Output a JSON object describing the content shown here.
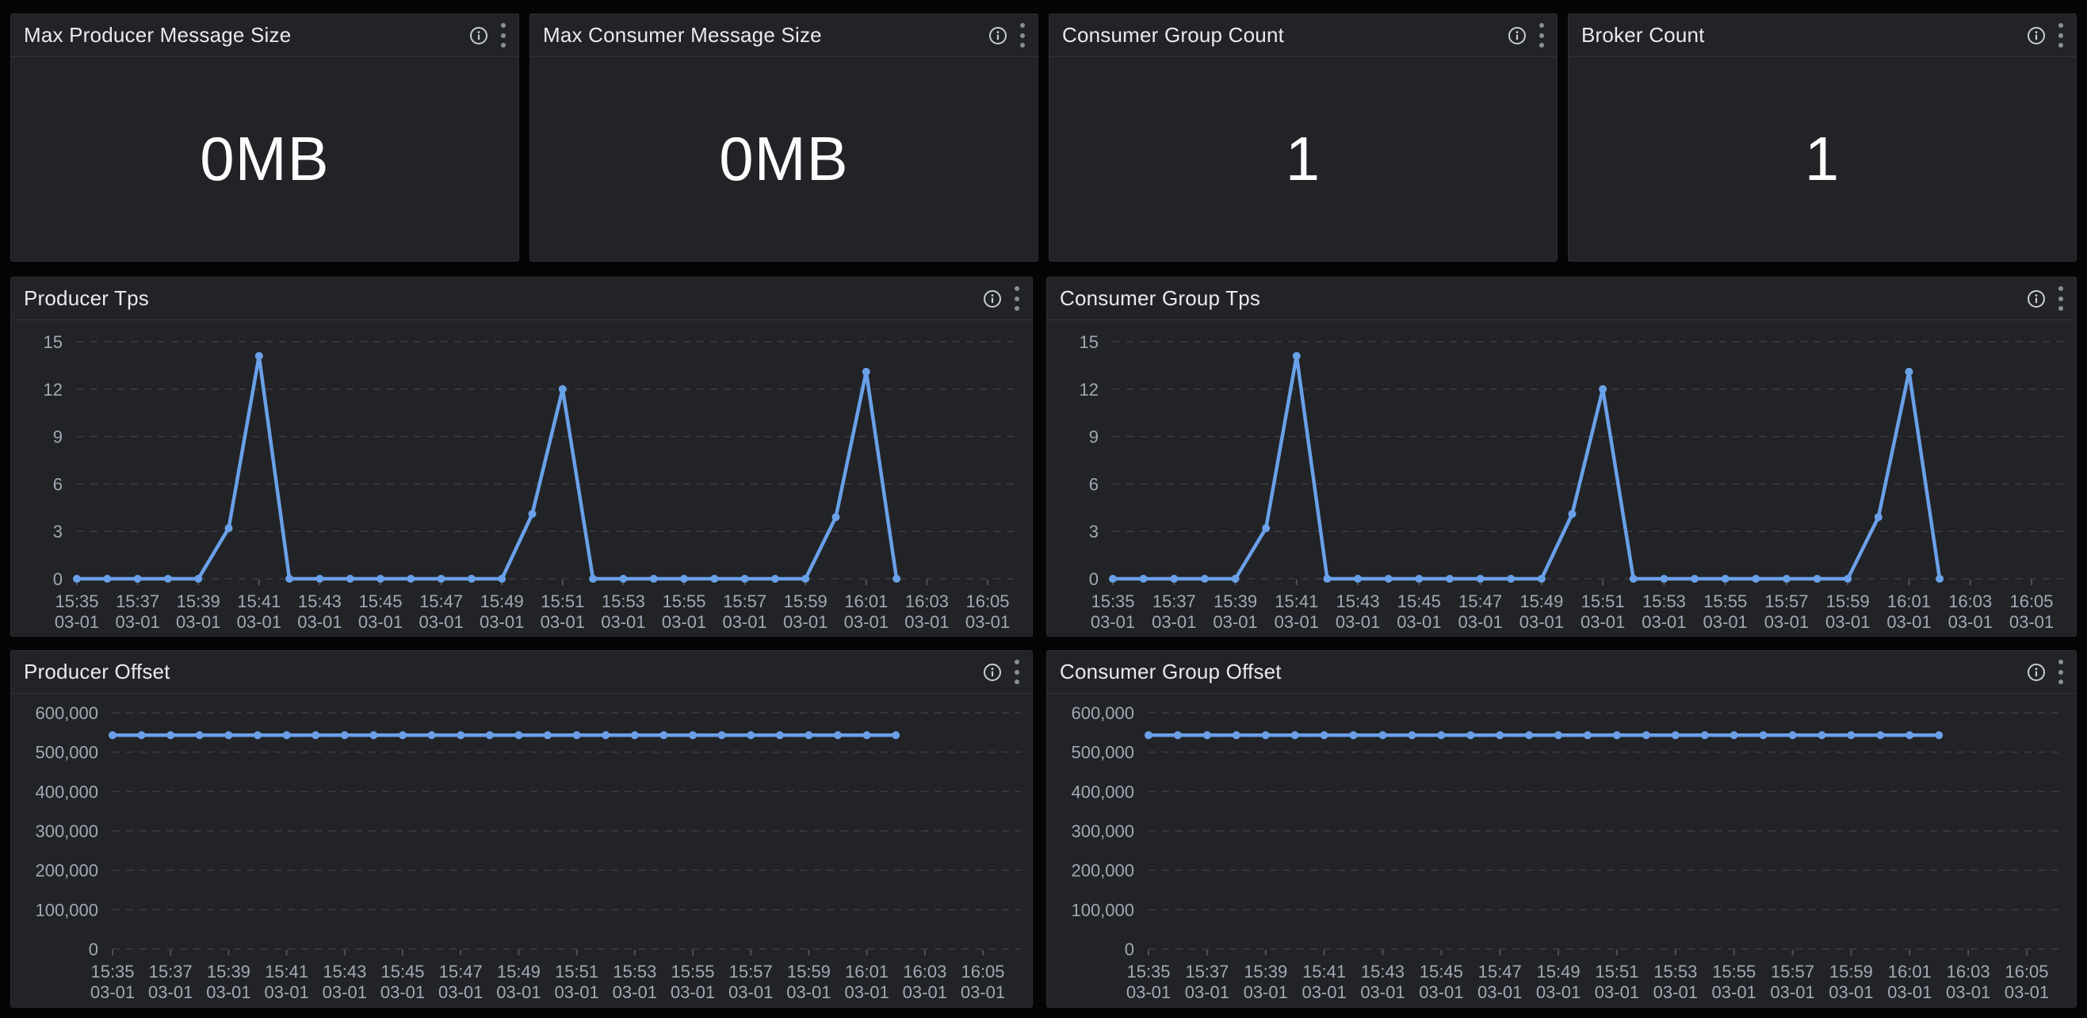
{
  "colors": {
    "page_bg": "#050506",
    "panel_bg": "#212327",
    "title_text": "#e9eaeb",
    "stat_text": "#fcfcfd",
    "axis_text": "#a2a8b4",
    "grid_line": "rgba(204,204,220,0.16)",
    "tick_mark": "rgba(204,204,220,0.28)",
    "series_blue": "#6aa0e8",
    "info_icon": "#c9ccd1",
    "kebab_dots": "#8a8e95"
  },
  "header_icons": [
    "info-icon",
    "kebab-menu-icon"
  ],
  "panels": {
    "stats": [
      {
        "title": "Max Producer Message Size",
        "value": "0MB"
      },
      {
        "title": "Max Consumer Message Size",
        "value": "0MB"
      },
      {
        "title": "Consumer Group Count",
        "value": "1"
      },
      {
        "title": "Broker Count",
        "value": "1"
      }
    ],
    "charts": [
      {
        "title": "Producer Tps"
      },
      {
        "title": "Consumer Group Tps"
      },
      {
        "title": "Producer Offset"
      },
      {
        "title": "Consumer Group Offset"
      }
    ]
  },
  "chart_data": [
    {
      "type": "line",
      "title": "Producer Tps",
      "x": [
        "15:35",
        "15:36",
        "15:37",
        "15:38",
        "15:39",
        "15:40",
        "15:41",
        "15:42",
        "15:43",
        "15:44",
        "15:45",
        "15:46",
        "15:47",
        "15:48",
        "15:49",
        "15:50",
        "15:51",
        "15:52",
        "15:53",
        "15:54",
        "15:55",
        "15:56",
        "15:57",
        "15:58",
        "15:59",
        "16:00",
        "16:01",
        "16:02"
      ],
      "values": [
        0,
        0,
        0,
        0,
        0,
        3.2,
        14.1,
        0,
        0,
        0,
        0,
        0,
        0,
        0,
        0,
        4.1,
        12,
        0,
        0,
        0,
        0,
        0,
        0,
        0,
        0,
        3.9,
        13.1,
        0
      ],
      "xlabel": "",
      "ylabel": "",
      "ylim": [
        0,
        15
      ],
      "yticks": [
        0,
        3,
        6,
        9,
        12,
        15
      ],
      "xtick_labels": [
        "15:35",
        "15:37",
        "15:39",
        "15:41",
        "15:43",
        "15:45",
        "15:47",
        "15:49",
        "15:51",
        "15:53",
        "15:55",
        "15:57",
        "15:59",
        "16:01",
        "16:03",
        "16:05"
      ],
      "xtick_date_line": "03-01",
      "x_axis_span_minutes": 30,
      "grid": "dashed-horizontal",
      "legend": "none",
      "line_color": "#6aa0e8",
      "markers": true
    },
    {
      "type": "line",
      "title": "Consumer Group Tps",
      "x": [
        "15:35",
        "15:36",
        "15:37",
        "15:38",
        "15:39",
        "15:40",
        "15:41",
        "15:42",
        "15:43",
        "15:44",
        "15:45",
        "15:46",
        "15:47",
        "15:48",
        "15:49",
        "15:50",
        "15:51",
        "15:52",
        "15:53",
        "15:54",
        "15:55",
        "15:56",
        "15:57",
        "15:58",
        "15:59",
        "16:00",
        "16:01",
        "16:02"
      ],
      "values": [
        0,
        0,
        0,
        0,
        0,
        3.2,
        14.1,
        0,
        0,
        0,
        0,
        0,
        0,
        0,
        0,
        4.1,
        12,
        0,
        0,
        0,
        0,
        0,
        0,
        0,
        0,
        3.9,
        13.1,
        0
      ],
      "xlabel": "",
      "ylabel": "",
      "ylim": [
        0,
        15
      ],
      "yticks": [
        0,
        3,
        6,
        9,
        12,
        15
      ],
      "xtick_labels": [
        "15:35",
        "15:37",
        "15:39",
        "15:41",
        "15:43",
        "15:45",
        "15:47",
        "15:49",
        "15:51",
        "15:53",
        "15:55",
        "15:57",
        "15:59",
        "16:01",
        "16:03",
        "16:05"
      ],
      "xtick_date_line": "03-01",
      "x_axis_span_minutes": 30,
      "grid": "dashed-horizontal",
      "legend": "none",
      "line_color": "#6aa0e8",
      "markers": true
    },
    {
      "type": "line",
      "title": "Producer Offset",
      "x": [
        "15:35",
        "15:36",
        "15:37",
        "15:38",
        "15:39",
        "15:40",
        "15:41",
        "15:42",
        "15:43",
        "15:44",
        "15:45",
        "15:46",
        "15:47",
        "15:48",
        "15:49",
        "15:50",
        "15:51",
        "15:52",
        "15:53",
        "15:54",
        "15:55",
        "15:56",
        "15:57",
        "15:58",
        "15:59",
        "16:00",
        "16:01",
        "16:02"
      ],
      "values": [
        543000,
        543000,
        543000,
        543000,
        543000,
        543000,
        543000,
        543000,
        543000,
        543000,
        543000,
        543000,
        543000,
        543000,
        543000,
        543000,
        543000,
        543000,
        543000,
        543000,
        543000,
        543000,
        543000,
        543000,
        543000,
        543000,
        543000,
        543000
      ],
      "xlabel": "",
      "ylabel": "",
      "ylim": [
        0,
        600000
      ],
      "yticks": [
        0,
        100000,
        200000,
        300000,
        400000,
        500000,
        600000
      ],
      "xtick_labels": [
        "15:35",
        "15:37",
        "15:39",
        "15:41",
        "15:43",
        "15:45",
        "15:47",
        "15:49",
        "15:51",
        "15:53",
        "15:55",
        "15:57",
        "15:59",
        "16:01",
        "16:03",
        "16:05"
      ],
      "xtick_date_line": "03-01",
      "x_axis_span_minutes": 30,
      "grid": "dashed-horizontal",
      "legend": "none",
      "line_color": "#6aa0e8",
      "markers": true
    },
    {
      "type": "line",
      "title": "Consumer Group Offset",
      "x": [
        "15:35",
        "15:36",
        "15:37",
        "15:38",
        "15:39",
        "15:40",
        "15:41",
        "15:42",
        "15:43",
        "15:44",
        "15:45",
        "15:46",
        "15:47",
        "15:48",
        "15:49",
        "15:50",
        "15:51",
        "15:52",
        "15:53",
        "15:54",
        "15:55",
        "15:56",
        "15:57",
        "15:58",
        "15:59",
        "16:00",
        "16:01",
        "16:02"
      ],
      "values": [
        543000,
        543000,
        543000,
        543000,
        543000,
        543000,
        543000,
        543000,
        543000,
        543000,
        543000,
        543000,
        543000,
        543000,
        543000,
        543000,
        543000,
        543000,
        543000,
        543000,
        543000,
        543000,
        543000,
        543000,
        543000,
        543000,
        543000,
        543000
      ],
      "xlabel": "",
      "ylabel": "",
      "ylim": [
        0,
        600000
      ],
      "yticks": [
        0,
        100000,
        200000,
        300000,
        400000,
        500000,
        600000
      ],
      "xtick_labels": [
        "15:35",
        "15:37",
        "15:39",
        "15:41",
        "15:43",
        "15:45",
        "15:47",
        "15:49",
        "15:51",
        "15:53",
        "15:55",
        "15:57",
        "15:59",
        "16:01",
        "16:03",
        "16:05"
      ],
      "xtick_date_line": "03-01",
      "x_axis_span_minutes": 30,
      "grid": "dashed-horizontal",
      "legend": "none",
      "line_color": "#6aa0e8",
      "markers": true
    }
  ]
}
